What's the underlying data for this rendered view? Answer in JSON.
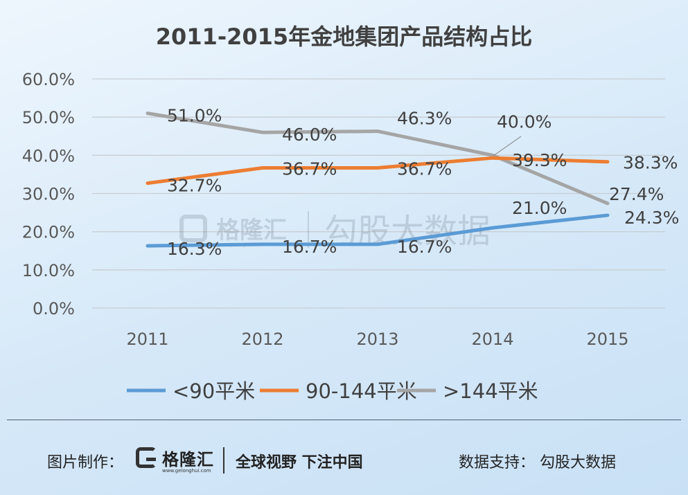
{
  "chart_data": {
    "type": "line",
    "title": "2011-2015年金地集团产品结构占比",
    "categories": [
      "2011",
      "2012",
      "2013",
      "2014",
      "2015"
    ],
    "ylim": [
      0,
      60
    ],
    "yticks": [
      "0.0%",
      "10.0%",
      "20.0%",
      "30.0%",
      "40.0%",
      "50.0%",
      "60.0%"
    ],
    "grid": true,
    "legend_position": "bottom",
    "series": [
      {
        "name": "<90平米",
        "color": "#5b9bd5",
        "values": [
          16.3,
          16.7,
          16.7,
          21.0,
          24.3
        ],
        "labels": [
          "16.3%",
          "16.7%",
          "16.7%",
          "21.0%",
          "24.3%"
        ]
      },
      {
        "name": "90-144平米",
        "color": "#ed7d31",
        "values": [
          32.7,
          36.7,
          36.7,
          39.3,
          38.3
        ],
        "labels": [
          "32.7%",
          "36.7%",
          "36.7%",
          "39.3%",
          "38.3%"
        ]
      },
      {
        "name": ">144平米",
        "color": "#a5a5a5",
        "values": [
          51.0,
          46.0,
          46.3,
          40.0,
          27.4
        ],
        "labels": [
          "51.0%",
          "46.0%",
          "46.3%",
          "40.0%",
          "27.4%"
        ]
      }
    ]
  },
  "watermark": {
    "brand": "格隆汇",
    "url": "www.gelonghui.com",
    "partner": "勾股大数据"
  },
  "footer": {
    "made_by_label": "图片制作：",
    "logo_name": "格隆汇",
    "logo_url": "www.gelonghui.com",
    "slogan": "全球视野 下注中国",
    "source_label": "数据支持：  勾股大数据"
  }
}
